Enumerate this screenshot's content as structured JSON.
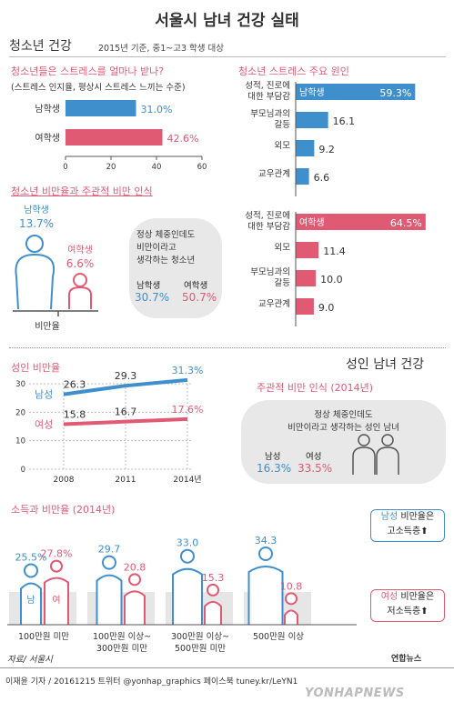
{
  "title": "서울시 남녀 건강 실태",
  "youth": {
    "heading": "청소년 건강",
    "basis": "2015년 기준, 중1~고3 학생 대상",
    "stress_question": "청소년들은 스트레스를 얼마나 받나?",
    "stress_note": "(스트레스 인지율, 평상시 스트레스 느끼는 수준)",
    "obesity_heading": "청소년 비만율과 주관적 비만 인식",
    "obesity_label": "비만율",
    "male_label": "남학생",
    "female_label": "여학생",
    "perception_text": "정상 체중인데도 비만이라고 생각하는 청소년",
    "perception_line1": "정상 체중인데도",
    "perception_line2": "비만이라고",
    "perception_line3": "생각하는 청소년",
    "causes_heading": "청소년 스트레스 주요 원인"
  },
  "adult": {
    "heading": "성인 남녀 건강",
    "obesity_heading": "성인 비만율",
    "perception_heading": "주관적 비만 인식 (2014년)",
    "perception_line1": "정상 체중인데도",
    "perception_line2": "비만이라고 생각하는 성인 남녀",
    "male": "남성",
    "female": "여성",
    "income_heading": "소득과 비만율 (2014년)",
    "fig_male": "남",
    "fig_female": "여",
    "note_male_a": "남성",
    "note_male_b": "비만율은",
    "note_male_c": "고소득층⬆",
    "note_female_a": "여성",
    "note_female_b": "비만율은",
    "note_female_c": "저소득층⬆"
  },
  "footer": {
    "source": "자료/ 서울시",
    "credit": "이재윤 기자 / 20161215  트위터 @yonhap_graphics  페이스북 tuney.kr/LeYN1",
    "brand_small": "연합뉴스",
    "brand": "YONHAPNEWS"
  },
  "colors": {
    "male": "#3f8fcd",
    "female": "#e05a74",
    "accent": "#e05a74"
  },
  "chart_data": [
    {
      "type": "bar",
      "title": "청소년들은 스트레스를 얼마나 받나?",
      "categories": [
        "남학생",
        "여학생"
      ],
      "values": [
        31.0,
        42.6
      ],
      "value_labels": [
        "31.0%",
        "42.6%"
      ],
      "xticks": [
        "0",
        "20",
        "40",
        "60"
      ],
      "xlim": [
        0,
        60
      ]
    },
    {
      "type": "bar",
      "title": "청소년 스트레스 주요 원인",
      "series": [
        {
          "name": "남학생",
          "categories": [
            "성적, 진로에 대한 부담감",
            "부모님과의 갈등",
            "외모",
            "교우관계"
          ],
          "values": [
            59.3,
            16.1,
            9.2,
            6.6
          ],
          "value_labels": [
            "59.3%",
            "16.1",
            "9.2",
            "6.6"
          ]
        },
        {
          "name": "여학생",
          "categories": [
            "성적, 진로에 대한 부담감",
            "외모",
            "부모님과의 갈등",
            "교우관계"
          ],
          "values": [
            64.5,
            11.4,
            10.0,
            9.0
          ],
          "value_labels": [
            "64.5%",
            "11.4",
            "10.0",
            "9.0"
          ]
        }
      ],
      "xlim": [
        0,
        70
      ]
    },
    {
      "type": "bar",
      "title": "청소년 비만율과 주관적 비만 인식",
      "categories": [
        "남학생",
        "여학생"
      ],
      "obesity": [
        13.7,
        6.6
      ],
      "obesity_labels": [
        "13.7%",
        "6.6%"
      ],
      "perception": [
        30.7,
        50.7
      ],
      "perception_labels": [
        "30.7%",
        "50.7%"
      ]
    },
    {
      "type": "line",
      "title": "성인 비만율",
      "x": [
        "2008",
        "2011",
        "2014년"
      ],
      "series": [
        {
          "name": "남성",
          "values": [
            26.3,
            29.3,
            31.3
          ],
          "value_labels": [
            "26.3",
            "29.3",
            "31.3%"
          ]
        },
        {
          "name": "여성",
          "values": [
            15.8,
            16.7,
            17.6
          ],
          "value_labels": [
            "15.8",
            "16.7",
            "17.6%"
          ]
        }
      ],
      "yticks": [
        "30",
        "20",
        "10",
        "0"
      ],
      "ylim": [
        0,
        30
      ]
    },
    {
      "type": "bar",
      "title": "주관적 비만 인식 (2014년)",
      "categories": [
        "남성",
        "여성"
      ],
      "values": [
        16.3,
        33.5
      ],
      "value_labels": [
        "16.3%",
        "33.5%"
      ]
    },
    {
      "type": "bar",
      "title": "소득과 비만율 (2014년)",
      "categories": [
        "100만원 미만",
        "100만원 이상~ 300만원 미만",
        "300만원 이상~ 500만원 미만",
        "500만원 이상"
      ],
      "category_lines": [
        [
          "100만원 미만"
        ],
        [
          "100만원 이상~",
          "300만원 미만"
        ],
        [
          "300만원 이상~",
          "500만원 미만"
        ],
        [
          "500만원 이상"
        ]
      ],
      "series": [
        {
          "name": "남성",
          "values": [
            25.5,
            29.7,
            33.0,
            34.3
          ],
          "value_labels": [
            "25.5%",
            "29.7",
            "33.0",
            "34.3"
          ]
        },
        {
          "name": "여성",
          "values": [
            27.8,
            20.8,
            15.3,
            10.8
          ],
          "value_labels": [
            "27.8%",
            "20.8",
            "15.3",
            "10.8"
          ]
        }
      ]
    }
  ]
}
